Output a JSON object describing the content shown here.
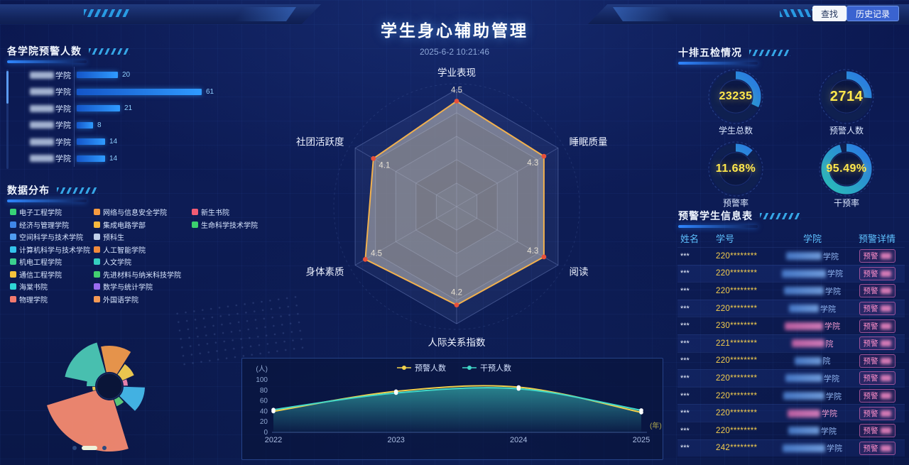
{
  "header": {
    "title": "学生身心辅助管理",
    "timestamp": "2025-6-2 10:21:46",
    "search_button": "查找",
    "history_button": "历史记录"
  },
  "sections": {
    "colleges": "各学院预警人数",
    "distribution": "数据分布",
    "inspection": "十排五检情况",
    "warning_table": "预警学生信息表"
  },
  "colors": {
    "accent_blue": "#2f86ff",
    "bar_blue": "#2f9bff",
    "id_yellow": "#f6cf4d",
    "stat_yellow": "#ffe84d",
    "badge_pink": "#ff8fca",
    "table_header_blue": "#5ec1ff",
    "radar_stroke": "#f2b14e",
    "radar_marker": "#e8503a"
  },
  "chart_data": [
    {
      "type": "bar",
      "title": "各学院预警人数",
      "orientation": "horizontal",
      "categories": [
        "***学院",
        "***学院",
        "***学院",
        "***学院",
        "***学院",
        "***学院"
      ],
      "values": [
        20,
        61,
        21,
        8,
        14,
        14
      ]
    },
    {
      "type": "radar",
      "max": 5,
      "indicators": [
        {
          "name": "学业表现",
          "value": 4.5
        },
        {
          "name": "睡眠质量",
          "value": 4.3
        },
        {
          "name": "阅读",
          "value": 4.3
        },
        {
          "name": "人际关系指数",
          "value": 4.2
        },
        {
          "name": "身体素质",
          "value": 4.5
        },
        {
          "name": "社团活跃度",
          "value": 4.1
        }
      ]
    },
    {
      "type": "line",
      "x": [
        "2022",
        "2023",
        "2024",
        "2025"
      ],
      "ylabel": "(人)",
      "xunit": "(年)",
      "ylim": [
        0,
        100
      ],
      "yticks": [
        0,
        20,
        40,
        60,
        80,
        100
      ],
      "legend_position": "top",
      "series": [
        {
          "name": "预警人数",
          "color": "#f2d24b",
          "values": [
            40,
            78,
            86,
            38
          ]
        },
        {
          "name": "干预人数",
          "color": "#41d8c8",
          "values": [
            43,
            75,
            83,
            42
          ]
        }
      ]
    },
    {
      "type": "pie",
      "subtype": "nightingale-rose",
      "inner_radius": 20,
      "segments": [
        {
          "color": "#4cc8b4",
          "start": -78,
          "end": -16,
          "radius": 64
        },
        {
          "color": "#f19a4b",
          "start": -12,
          "end": 32,
          "radius": 57
        },
        {
          "color": "#f6cf4f",
          "start": 35,
          "end": 66,
          "radius": 38
        },
        {
          "color": "#ef86b0",
          "start": 68,
          "end": 88,
          "radius": 26
        },
        {
          "color": "#46b9ea",
          "start": 92,
          "end": 134,
          "radius": 50
        },
        {
          "color": "#5fcf7a",
          "start": 138,
          "end": 160,
          "radius": 30
        },
        {
          "color": "#f58a70",
          "start": 163,
          "end": 253,
          "radius": 92
        },
        {
          "color": "#f6cf4f",
          "start": 255,
          "end": 268,
          "radius": 24
        },
        {
          "color": "#4cc8b4",
          "start": 270,
          "end": 283,
          "radius": 32
        }
      ]
    }
  ],
  "distribution_legend": [
    [
      {
        "label": "电子工程学院",
        "color": "#37d277"
      },
      {
        "label": "经济与管理学院",
        "color": "#3f86e8"
      },
      {
        "label": "空间科学与技术学院",
        "color": "#4f9bf0"
      },
      {
        "label": "计算机科学与技术学院",
        "color": "#34c3ec"
      },
      {
        "label": "机电工程学院",
        "color": "#3bd08e"
      },
      {
        "label": "通信工程学院",
        "color": "#f6c33c"
      },
      {
        "label": "海棠书院",
        "color": "#2fd5d5"
      },
      {
        "label": "物理学院",
        "color": "#f27a6f"
      }
    ],
    [
      {
        "label": "网络与信息安全学院",
        "color": "#f59b40"
      },
      {
        "label": "集成电路学部",
        "color": "#f6b83d"
      },
      {
        "label": "预科生",
        "color": "#c0d0ea"
      },
      {
        "label": "人工智能学院",
        "color": "#f08a3c"
      },
      {
        "label": "人文学院",
        "color": "#35cfc0"
      },
      {
        "label": "先进材料与纳米科技学院",
        "color": "#43cf70"
      },
      {
        "label": "数学与统计学院",
        "color": "#9a6cf0"
      },
      {
        "label": "外国语学院",
        "color": "#f59a55"
      }
    ],
    [
      {
        "label": "新生书院",
        "color": "#f25c74"
      },
      {
        "label": "生命科学技术学院",
        "color": "#3bd06e"
      }
    ]
  ],
  "stats": {
    "items": [
      {
        "value": "23235",
        "label": "学生总数",
        "arc": 0.32
      },
      {
        "value": "2714",
        "label": "预警人数",
        "arc": 0.26
      },
      {
        "value": "11.68%",
        "label": "预警率",
        "arc": 0.1168
      },
      {
        "value": "95.49%",
        "label": "干预率",
        "arc": 0.9549
      }
    ]
  },
  "table": {
    "headers": [
      "姓名",
      "学号",
      "学院",
      "预警详情"
    ],
    "rows": [
      {
        "name": "***",
        "student_id": "220********",
        "college_suffix": "学院",
        "college_tone": "blue",
        "warning": "预警"
      },
      {
        "name": "***",
        "student_id": "220********",
        "college_suffix": "学院",
        "college_tone": "blue",
        "warning": "预警"
      },
      {
        "name": "***",
        "student_id": "220********",
        "college_suffix": "学院",
        "college_tone": "blue",
        "warning": "预警"
      },
      {
        "name": "***",
        "student_id": "220********",
        "college_suffix": "学院",
        "college_tone": "blue",
        "warning": "预警"
      },
      {
        "name": "***",
        "student_id": "230********",
        "college_suffix": "学院",
        "college_tone": "pink",
        "warning": "预警"
      },
      {
        "name": "***",
        "student_id": "221********",
        "college_suffix": "院",
        "college_tone": "pink",
        "warning": "预警"
      },
      {
        "name": "***",
        "student_id": "220********",
        "college_suffix": "院",
        "college_tone": "blue",
        "warning": "预警"
      },
      {
        "name": "***",
        "student_id": "220********",
        "college_suffix": "学院",
        "college_tone": "blue",
        "warning": "预警"
      },
      {
        "name": "***",
        "student_id": "220********",
        "college_suffix": "学院",
        "college_tone": "blue",
        "warning": "预警"
      },
      {
        "name": "***",
        "student_id": "220********",
        "college_suffix": "学院",
        "college_tone": "pink",
        "warning": "预警"
      },
      {
        "name": "***",
        "student_id": "220********",
        "college_suffix": "学院",
        "college_tone": "blue",
        "warning": "预警"
      },
      {
        "name": "***",
        "student_id": "242********",
        "college_suffix": "学院",
        "college_tone": "blue",
        "warning": "预警"
      }
    ]
  },
  "rose_pager": {
    "dots": 3,
    "active_index": 1
  }
}
